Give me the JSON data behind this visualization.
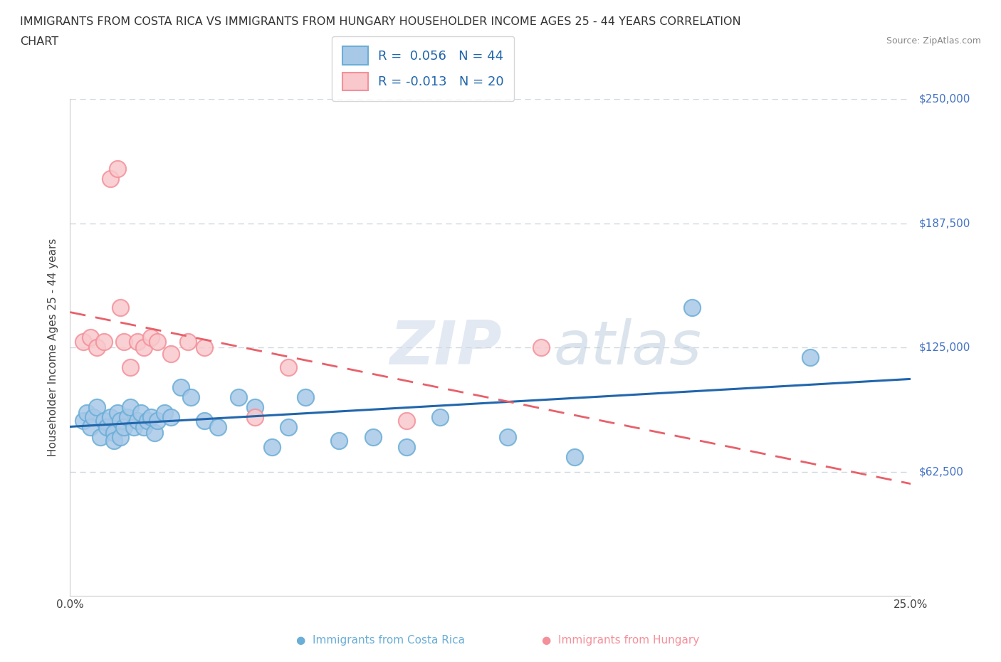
{
  "title_line1": "IMMIGRANTS FROM COSTA RICA VS IMMIGRANTS FROM HUNGARY HOUSEHOLDER INCOME AGES 25 - 44 YEARS CORRELATION",
  "title_line2": "CHART",
  "source": "Source: ZipAtlas.com",
  "ylabel": "Householder Income Ages 25 - 44 years",
  "xlim": [
    0.0,
    0.25
  ],
  "ylim": [
    0,
    250000
  ],
  "yticks": [
    0,
    62500,
    125000,
    187500,
    250000
  ],
  "xticks": [
    0.0,
    0.05,
    0.1,
    0.15,
    0.2,
    0.25
  ],
  "xtick_labels": [
    "0.0%",
    "",
    "",
    "",
    "",
    "25.0%"
  ],
  "costa_rica_color": "#a8c8e8",
  "costa_rica_edge": "#6baed6",
  "hungary_color": "#f8c8cc",
  "hungary_edge": "#f4909a",
  "costa_rica_line_color": "#2166ac",
  "hungary_line_color": "#e8606a",
  "R_costa_rica": 0.056,
  "N_costa_rica": 44,
  "R_hungary": -0.013,
  "N_hungary": 20,
  "costa_rica_x": [
    0.004,
    0.005,
    0.006,
    0.007,
    0.008,
    0.009,
    0.01,
    0.011,
    0.012,
    0.013,
    0.013,
    0.014,
    0.015,
    0.015,
    0.016,
    0.017,
    0.018,
    0.019,
    0.02,
    0.021,
    0.022,
    0.023,
    0.024,
    0.025,
    0.026,
    0.028,
    0.03,
    0.033,
    0.036,
    0.04,
    0.044,
    0.05,
    0.055,
    0.06,
    0.065,
    0.07,
    0.08,
    0.09,
    0.1,
    0.11,
    0.13,
    0.15,
    0.185,
    0.22
  ],
  "costa_rica_y": [
    88000,
    92000,
    85000,
    90000,
    95000,
    80000,
    88000,
    85000,
    90000,
    82000,
    78000,
    92000,
    88000,
    80000,
    85000,
    90000,
    95000,
    85000,
    88000,
    92000,
    85000,
    88000,
    90000,
    82000,
    88000,
    92000,
    90000,
    105000,
    100000,
    88000,
    85000,
    100000,
    95000,
    75000,
    85000,
    100000,
    78000,
    80000,
    75000,
    90000,
    80000,
    70000,
    145000,
    120000
  ],
  "hungary_x": [
    0.004,
    0.006,
    0.008,
    0.01,
    0.012,
    0.014,
    0.015,
    0.016,
    0.018,
    0.02,
    0.022,
    0.024,
    0.026,
    0.03,
    0.035,
    0.04,
    0.055,
    0.065,
    0.1,
    0.14
  ],
  "hungary_y": [
    128000,
    130000,
    125000,
    128000,
    210000,
    215000,
    145000,
    128000,
    115000,
    128000,
    125000,
    130000,
    128000,
    122000,
    128000,
    125000,
    90000,
    115000,
    88000,
    125000
  ],
  "watermark_text": "ZIP",
  "watermark_text2": "atlas",
  "grid_color": "#d0d8e0",
  "background_color": "#ffffff",
  "legend_color": "#2166ac",
  "title_fontsize": 11.5,
  "axis_label_fontsize": 11,
  "tick_fontsize": 11,
  "right_tick_color": "#4472c4"
}
